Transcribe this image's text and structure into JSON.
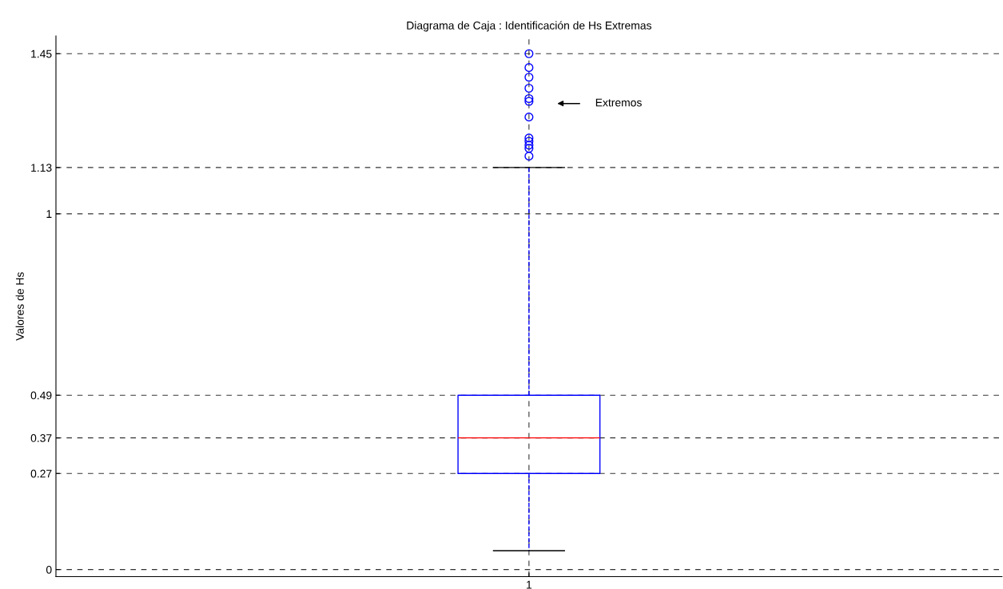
{
  "chart_data": {
    "type": "box",
    "title": "Diagrama de Caja : Identificación de Hs Extremas",
    "ylabel": "Valores de Hs",
    "categories": [
      "1"
    ],
    "boxes": [
      {
        "low": 0.053,
        "q1": 0.27,
        "median": 0.37,
        "q3": 0.49,
        "high": 1.13,
        "outliers": [
          1.45,
          1.411,
          1.384,
          1.353,
          1.324,
          1.316,
          1.272,
          1.213,
          1.204,
          1.193,
          1.184,
          1.162
        ]
      }
    ],
    "color": "#0000ff",
    "ylim": [
      -0.02,
      1.5
    ],
    "yticks": [
      0,
      0.27,
      0.37,
      0.49,
      1,
      1.13,
      1.45
    ],
    "grid": true,
    "line_style": "dashed",
    "marker": "circle",
    "annotations": [
      "Extremos"
    ]
  }
}
